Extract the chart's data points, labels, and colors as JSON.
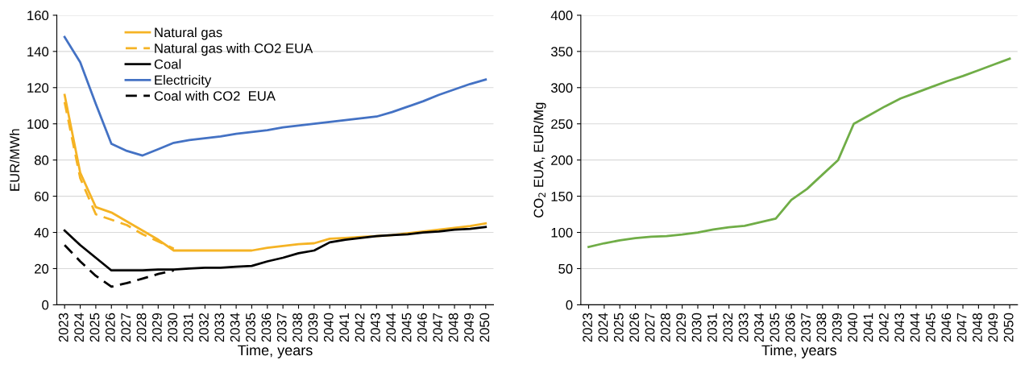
{
  "chart_data": [
    {
      "type": "line",
      "xlabel": "Time, years",
      "ylabel": "EUR/MWh",
      "ylim": [
        0,
        160
      ],
      "yticks": [
        0,
        20,
        40,
        60,
        80,
        100,
        120,
        140,
        160
      ],
      "grid": "y",
      "legend": "top left",
      "line_style": "solid",
      "marker": "none",
      "categories": [
        "2023",
        "2024",
        "2025",
        "2026",
        "2027",
        "2028",
        "2029",
        "2030",
        "2031",
        "2032",
        "2033",
        "2034",
        "2035",
        "2036",
        "2037",
        "2038",
        "2039",
        "2040",
        "2041",
        "2042",
        "2043",
        "2044",
        "2045",
        "2046",
        "2047",
        "2048",
        "2049",
        "2050"
      ],
      "series": [
        {
          "name": "Natural gas",
          "color": "#f5b324",
          "values": [
            116,
            73,
            54,
            51,
            46,
            41,
            36,
            30,
            30,
            30,
            30,
            30,
            30,
            31.5,
            32.5,
            33.5,
            34,
            36.5,
            37,
            37.5,
            38,
            38.5,
            39.5,
            40.5,
            41.5,
            42.5,
            43.5,
            45
          ]
        },
        {
          "name": "Natural gas with CO2 EUA",
          "color": "#f5b324",
          "line_style": "dashed",
          "values": [
            112,
            70,
            50,
            47,
            44,
            39,
            35,
            31,
            null,
            null,
            null,
            null,
            null,
            null,
            null,
            null,
            null,
            null,
            null,
            null,
            null,
            null,
            null,
            null,
            null,
            null,
            null,
            null
          ]
        },
        {
          "name": "Coal",
          "color": "#000000",
          "values": [
            41,
            33,
            26,
            19,
            19,
            19,
            19.5,
            19.5,
            20,
            20.5,
            20.5,
            21,
            21.5,
            24,
            26,
            28.5,
            30,
            34.5,
            36,
            37,
            38,
            38.5,
            39,
            40,
            40.5,
            41.5,
            42,
            43
          ]
        },
        {
          "name": "Electricity",
          "color": "#4472c4",
          "values": [
            148,
            134,
            111,
            89,
            85,
            82.5,
            86,
            89.5,
            91,
            92,
            93,
            94.5,
            95.5,
            96.5,
            98,
            99,
            100,
            101,
            102,
            103,
            104,
            106.5,
            109.5,
            112.5,
            116,
            119,
            122,
            124.5
          ]
        },
        {
          "name": "Coal with CO2  EUA",
          "color": "#000000",
          "line_style": "dashed",
          "values": [
            33,
            24,
            16,
            10,
            12,
            14.5,
            17,
            19,
            null,
            null,
            null,
            null,
            null,
            null,
            null,
            null,
            null,
            null,
            null,
            null,
            null,
            null,
            null,
            null,
            null,
            null,
            null,
            null
          ]
        }
      ]
    },
    {
      "type": "line",
      "xlabel": "Time, years",
      "ylabel": "CO$_{2}$ EUA, EUR/Mg",
      "ylim": [
        0,
        400
      ],
      "yticks": [
        0,
        50,
        100,
        150,
        200,
        250,
        300,
        350,
        400
      ],
      "grid": "y",
      "line_style": "solid",
      "marker": "none",
      "categories": [
        "2023",
        "2024",
        "2025",
        "2026",
        "2027",
        "2028",
        "2029",
        "2030",
        "2031",
        "2032",
        "2033",
        "2034",
        "2035",
        "2036",
        "2037",
        "2038",
        "2039",
        "2040",
        "2041",
        "2042",
        "2043",
        "2044",
        "2045",
        "2046",
        "2047",
        "2048",
        "2049",
        "2050"
      ],
      "series": [
        {
          "color": "#70ad47",
          "values": [
            80,
            85,
            89,
            92,
            94,
            95,
            97,
            100,
            104,
            107,
            109,
            114,
            119,
            145,
            160,
            180,
            200,
            250,
            262,
            274,
            285,
            293,
            301,
            309,
            316,
            324,
            332,
            340
          ]
        }
      ]
    }
  ]
}
